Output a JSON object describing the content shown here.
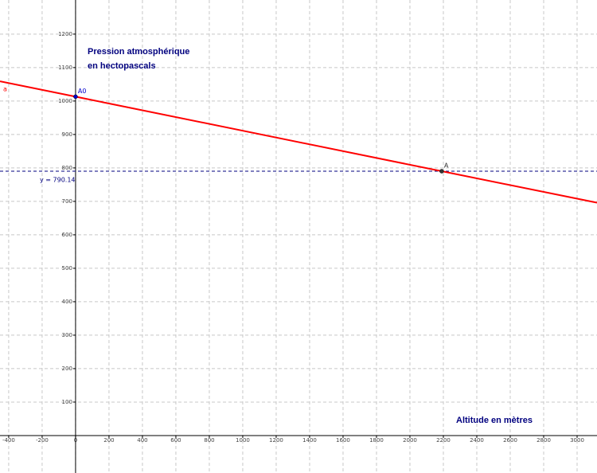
{
  "chart_data": {
    "type": "line",
    "annotations": [
      "Pression atmosphérique",
      "en hectopascals",
      "Altitude en mètres"
    ],
    "xlim": [
      -452,
      3119
    ],
    "ylim": [
      -112,
      1302
    ],
    "xticks": [
      -400,
      -200,
      0,
      200,
      400,
      600,
      800,
      1000,
      1200,
      1400,
      1600,
      1800,
      2000,
      2200,
      2400,
      2600,
      2800,
      3000
    ],
    "yticks": [
      100,
      200,
      300,
      400,
      500,
      600,
      700,
      800,
      900,
      1000,
      1100,
      1200
    ],
    "grid": true,
    "series": [
      {
        "name": "a",
        "color": "#ff0000",
        "x": [
          -452,
          0,
          2190,
          3119
        ],
        "values": [
          1059,
          1013,
          790.14,
          696
        ]
      }
    ],
    "points": [
      {
        "name": "A0",
        "color": "#0000cc",
        "x": 0,
        "y": 1013
      },
      {
        "name": "A",
        "color": "#333333",
        "x": 2190,
        "y": 790.14
      }
    ],
    "hline": {
      "value": 790.14,
      "label": "y = 790.14",
      "color": "#00007f"
    }
  }
}
